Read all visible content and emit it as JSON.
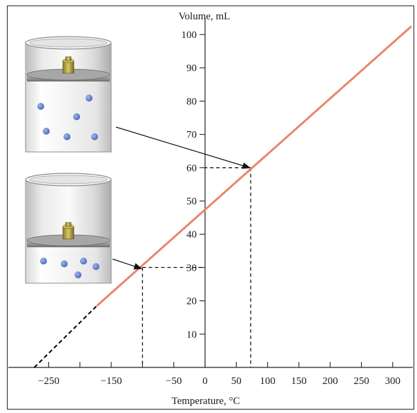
{
  "chart_data": {
    "type": "line",
    "title": "",
    "xlabel": "Temperature, °C",
    "ylabel": "Volume, mL",
    "xlim": [
      -280,
      330
    ],
    "ylim": [
      0,
      105
    ],
    "x_ticks": [
      -250,
      -200,
      -150,
      -100,
      -50,
      0,
      50,
      100,
      150,
      200,
      250,
      300
    ],
    "x_tick_labels": [
      {
        "value": -250,
        "label": "−250"
      },
      {
        "value": -150,
        "label": "−150"
      },
      {
        "value": -50,
        "label": "−50"
      },
      {
        "value": 0,
        "label": "0"
      },
      {
        "value": 50,
        "label": "50"
      },
      {
        "value": 100,
        "label": "100"
      },
      {
        "value": 150,
        "label": "150"
      },
      {
        "value": 200,
        "label": "200"
      },
      {
        "value": 250,
        "label": "250"
      },
      {
        "value": 300,
        "label": "300"
      }
    ],
    "y_ticks": [
      10,
      20,
      30,
      40,
      50,
      60,
      70,
      80,
      90,
      100
    ],
    "y_tick_labels": [
      "10",
      "20",
      "30",
      "40",
      "50",
      "60",
      "70",
      "80",
      "90",
      "100"
    ],
    "series": [
      {
        "style": "solid",
        "color": "#e8866a",
        "x": [
          -173,
          330
        ],
        "y": [
          18.5,
          102.5
        ]
      },
      {
        "style": "dashed",
        "color": "#000000",
        "x": [
          -273,
          -173
        ],
        "y": [
          0,
          18.5
        ]
      }
    ],
    "highlighted_points": [
      {
        "x": -100,
        "y": 30
      },
      {
        "x": 73,
        "y": 60
      }
    ],
    "grid": false
  },
  "icons": {
    "beaker_top": "gas-cylinder-icon",
    "beaker_bottom": "gas-cylinder-icon"
  }
}
